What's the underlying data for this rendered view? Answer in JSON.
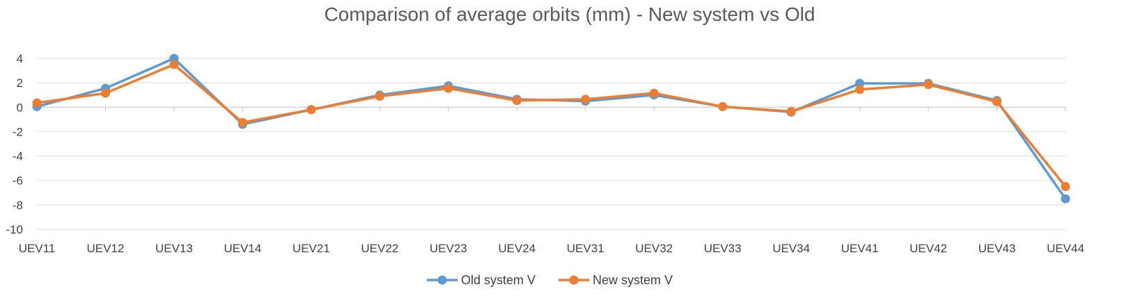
{
  "chart_data": {
    "type": "line",
    "title": "Comparison of average orbits (mm) - New system vs Old",
    "xlabel": "",
    "ylabel": "",
    "ylim": [
      -10,
      4
    ],
    "yticks": [
      4,
      2,
      0,
      -2,
      -4,
      -6,
      -8,
      -10
    ],
    "ytick_labels": [
      "4",
      "2",
      "0",
      "-2",
      "-4",
      "-6",
      "-8",
      "-10"
    ],
    "grid": true,
    "legend_position": "bottom",
    "categories": [
      "UEV11",
      "UEV12",
      "UEV13",
      "UEV14",
      "UEV21",
      "UEV22",
      "UEV23",
      "UEV24",
      "UEV31",
      "UEV32",
      "UEV33",
      "UEV34",
      "UEV41",
      "UEV42",
      "UEV43",
      "UEV44"
    ],
    "series": [
      {
        "name": "Old system V",
        "color": "#5b9bd5",
        "values": [
          0.05,
          1.55,
          4.0,
          -1.4,
          -0.2,
          1.0,
          1.75,
          0.65,
          0.5,
          1.0,
          0.05,
          -0.4,
          1.95,
          1.95,
          0.55,
          -7.5
        ]
      },
      {
        "name": "New system V",
        "color": "#ed7d31",
        "values": [
          0.35,
          1.15,
          3.5,
          -1.25,
          -0.2,
          0.9,
          1.55,
          0.55,
          0.65,
          1.15,
          0.05,
          -0.35,
          1.45,
          1.85,
          0.45,
          -6.5
        ]
      }
    ]
  }
}
